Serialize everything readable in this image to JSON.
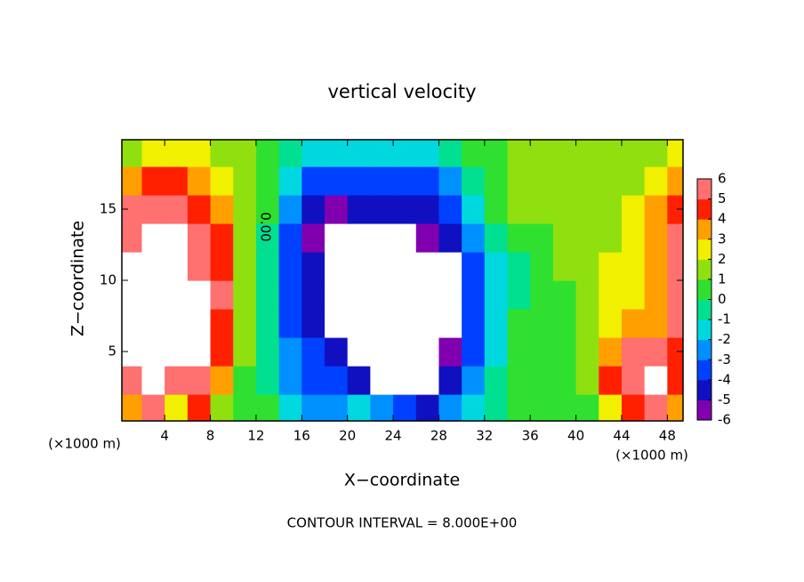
{
  "chart_data": {
    "type": "heatmap",
    "title": "vertical velocity",
    "xlabel": "X−coordinate",
    "ylabel": "Z−coordinate",
    "x_unit": "(×1000 m)",
    "y_unit": "(×1000 m)",
    "footer": "CONTOUR INTERVAL = 8.000E+00",
    "annotations": [
      "0.00"
    ],
    "xlim": [
      0.25,
      49.375
    ],
    "ylim": [
      0.125,
      19.875
    ],
    "xticks": [
      4,
      8,
      12,
      16,
      20,
      24,
      28,
      32,
      36,
      40,
      44,
      48
    ],
    "yticks": [
      5,
      10,
      15
    ],
    "x": [
      1,
      3,
      5,
      7,
      9,
      11,
      13,
      15,
      17,
      19,
      21,
      23,
      25,
      27,
      29,
      31,
      33,
      35,
      37,
      39,
      41,
      43,
      45,
      47,
      49
    ],
    "y": [
      1,
      3,
      5,
      7,
      9,
      11,
      13,
      15,
      17,
      19
    ],
    "z": [
      [
        3,
        5,
        2,
        4,
        1,
        0,
        0,
        -2,
        -3,
        -3,
        -2,
        -3,
        -4,
        -5,
        -3,
        -2,
        -1,
        0,
        0,
        0,
        0,
        2,
        4,
        5,
        3
      ],
      [
        6,
        7,
        6,
        5,
        3,
        0,
        -1,
        -3,
        -4,
        -4,
        -5,
        -7,
        -7,
        -7,
        -5,
        -3,
        -1,
        0,
        0,
        0,
        1,
        4,
        6,
        7,
        4
      ],
      [
        7,
        8,
        8,
        7,
        4,
        1,
        -1,
        -3,
        -4,
        -5,
        -7,
        -7,
        -8,
        -7,
        -6,
        -4,
        -2,
        0,
        0,
        0,
        1,
        3,
        5,
        5,
        4
      ],
      [
        7,
        8,
        8,
        7,
        4,
        1,
        -1,
        -4,
        -5,
        -8,
        -8,
        -8,
        -8,
        -8,
        -7,
        -4,
        -2,
        0,
        0,
        0,
        1,
        2,
        3,
        3,
        5
      ],
      [
        7,
        8,
        8,
        7,
        5,
        1,
        -1,
        -4,
        -5,
        -8,
        -8,
        -8,
        -8,
        -8,
        -7,
        -4,
        -2,
        -1,
        0,
        0,
        1,
        2,
        2,
        3,
        6
      ],
      [
        7,
        8,
        7,
        6,
        4,
        1,
        -1,
        -4,
        -5,
        -8,
        -8,
        -8,
        -8,
        -8,
        -7,
        -4,
        -2,
        -1,
        0,
        1,
        1,
        2,
        2,
        3,
        6
      ],
      [
        6,
        7,
        7,
        6,
        4,
        1,
        -1,
        -4,
        -6,
        -7,
        -8,
        -8,
        -7,
        -6,
        -5,
        -3,
        -1,
        0,
        0,
        1,
        1,
        1,
        2,
        3,
        5
      ],
      [
        5,
        5,
        5,
        4,
        3,
        1,
        0,
        -3,
        -5,
        -6,
        -5,
        -5,
        -5,
        -5,
        -4,
        -2,
        0,
        1,
        1,
        1,
        1,
        1,
        2,
        3,
        4
      ],
      [
        3,
        4,
        4,
        3,
        2,
        1,
        0,
        -2,
        -4,
        -4,
        -4,
        -4,
        -4,
        -4,
        -3,
        -1,
        0,
        1,
        1,
        1,
        1,
        1,
        1,
        2,
        3
      ],
      [
        1,
        2,
        2,
        2,
        1,
        1,
        0,
        -1,
        -2,
        -2,
        -2,
        -2,
        -2,
        -2,
        -1,
        0,
        0,
        1,
        1,
        1,
        1,
        1,
        1,
        1,
        2
      ]
    ],
    "colorbar": {
      "ticks": [
        6,
        5,
        4,
        3,
        2,
        1,
        0,
        -1,
        -2,
        -3,
        -4,
        -5,
        -6
      ],
      "colors": [
        "#8000b0",
        "#1010c0",
        "#0040ff",
        "#0090ff",
        "#00d8e0",
        "#00e090",
        "#30e030",
        "#90e010",
        "#f0f000",
        "#ffa000",
        "#ff2000",
        "#ff7070"
      ],
      "out_of_range_color": "#ffffff"
    }
  }
}
